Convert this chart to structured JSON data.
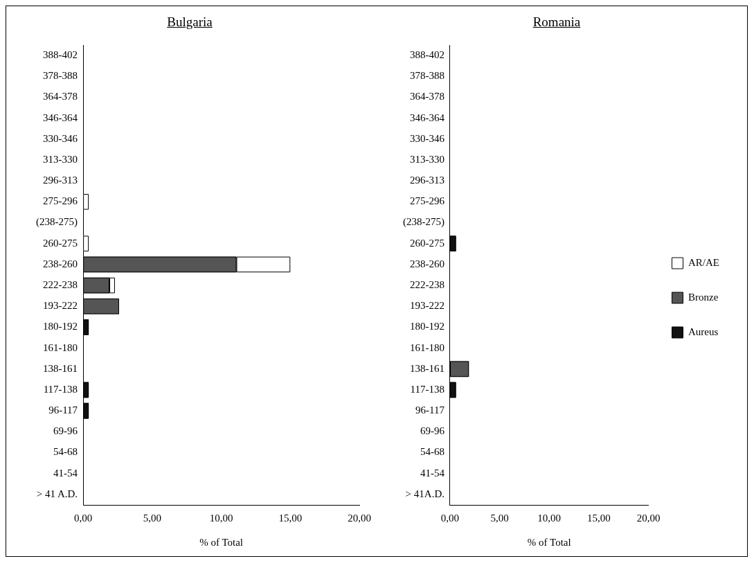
{
  "chart_data": [
    {
      "type": "bar",
      "title": "Bulgaria",
      "xlabel": "% of Total",
      "orientation": "horizontal",
      "stacked": true,
      "legend": false,
      "grid": false,
      "categories": [
        "388-402",
        "378-388",
        "364-378",
        "346-364",
        "330-346",
        "313-330",
        "296-313",
        "275-296",
        "(238-275)",
        "260-275",
        "238-260",
        "222-238",
        "193-222",
        "180-192",
        "161-180",
        "138-161",
        "117-138",
        "96-117",
        "69-96",
        "54-68",
        "41-54",
        "> 41 A.D."
      ],
      "xlim": [
        0,
        20
      ],
      "xticks": [
        {
          "value": 0,
          "label": "0,00"
        },
        {
          "value": 5,
          "label": "5,00"
        },
        {
          "value": 10,
          "label": "10,00"
        },
        {
          "value": 15,
          "label": "15,00"
        },
        {
          "value": 20,
          "label": "20,00"
        }
      ],
      "series": [
        {
          "color": "#111111",
          "values": [
            0,
            0,
            0,
            0,
            0,
            0,
            0,
            0,
            0,
            0,
            0,
            0,
            0,
            0.4,
            0,
            0,
            0.4,
            0.4,
            0,
            0,
            0,
            0
          ]
        },
        {
          "color": "#555555",
          "values": [
            0,
            0,
            0,
            0,
            0,
            0,
            0,
            0,
            0,
            0,
            11.1,
            1.9,
            2.6,
            0,
            0,
            0,
            0,
            0,
            0,
            0,
            0,
            0
          ]
        },
        {
          "color": "#ffffff",
          "values": [
            0,
            0,
            0,
            0,
            0,
            0,
            0,
            0.4,
            0,
            0.4,
            3.9,
            0.4,
            0,
            0,
            0,
            0,
            0,
            0,
            0,
            0,
            0,
            0
          ]
        }
      ]
    },
    {
      "type": "bar",
      "title": "Romania",
      "xlabel": "% of Total",
      "orientation": "horizontal",
      "stacked": true,
      "legend": "right",
      "grid": false,
      "categories": [
        "388-402",
        "378-388",
        "364-378",
        "346-364",
        "330-346",
        "313-330",
        "296-313",
        "275-296",
        "(238-275)",
        "260-275",
        "238-260",
        "222-238",
        "193-222",
        "180-192",
        "161-180",
        "138-161",
        "117-138",
        "96-117",
        "69-96",
        "54-68",
        "41-54",
        "> 41A.D."
      ],
      "xlim": [
        0,
        20
      ],
      "xticks": [
        {
          "value": 0,
          "label": "0,00"
        },
        {
          "value": 5,
          "label": "5,00"
        },
        {
          "value": 10,
          "label": "10,00"
        },
        {
          "value": 15,
          "label": "15,00"
        },
        {
          "value": 20,
          "label": "20,00"
        }
      ],
      "series": [
        {
          "name": "Aureus",
          "color": "#111111",
          "values": [
            0,
            0,
            0,
            0,
            0,
            0,
            0,
            0,
            0,
            0.6,
            0,
            0,
            0,
            0,
            0,
            0,
            0.6,
            0,
            0,
            0,
            0,
            0
          ]
        },
        {
          "name": "Bronze",
          "color": "#555555",
          "values": [
            0,
            0,
            0,
            0,
            0,
            0,
            0,
            0,
            0,
            0,
            0,
            0,
            0,
            0,
            0,
            1.9,
            0,
            0,
            0,
            0,
            0,
            0
          ]
        },
        {
          "name": "AR/AE",
          "color": "#ffffff",
          "values": [
            0,
            0,
            0,
            0,
            0,
            0,
            0,
            0,
            0,
            0,
            0,
            0,
            0,
            0,
            0,
            0,
            0,
            0,
            0,
            0,
            0,
            0
          ]
        }
      ]
    }
  ]
}
